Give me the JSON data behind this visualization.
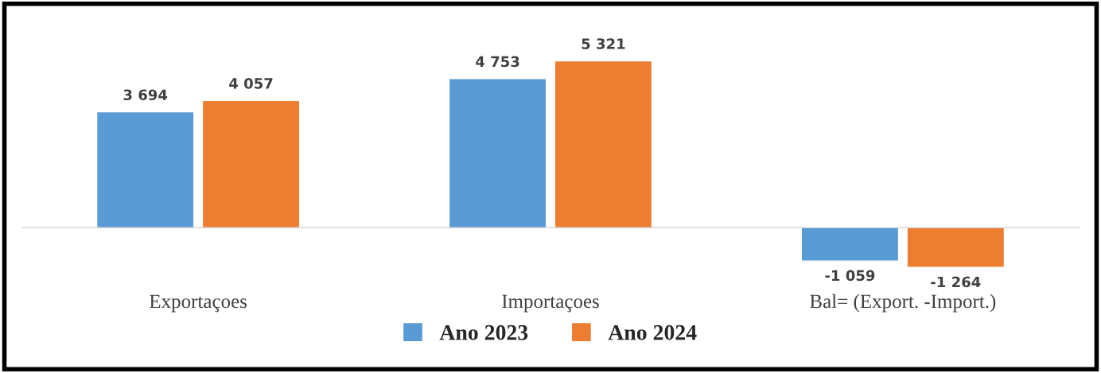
{
  "chart_data": {
    "type": "bar",
    "categories": [
      "Exportaçoes",
      "Importaçoes",
      "Bal= (Export. -Import.)"
    ],
    "series": [
      {
        "name": "Ano 2023",
        "color": "#5b9bd5",
        "values": [
          3694,
          4753,
          -1059
        ],
        "value_labels": [
          "3 694",
          "4 753",
          "-1 059"
        ]
      },
      {
        "name": "Ano 2024",
        "color": "#ed7d31",
        "values": [
          4057,
          5321,
          -1264
        ],
        "value_labels": [
          "4 057",
          "5 321",
          "-1 264"
        ]
      }
    ],
    "legend": "bottom",
    "grid": false
  }
}
